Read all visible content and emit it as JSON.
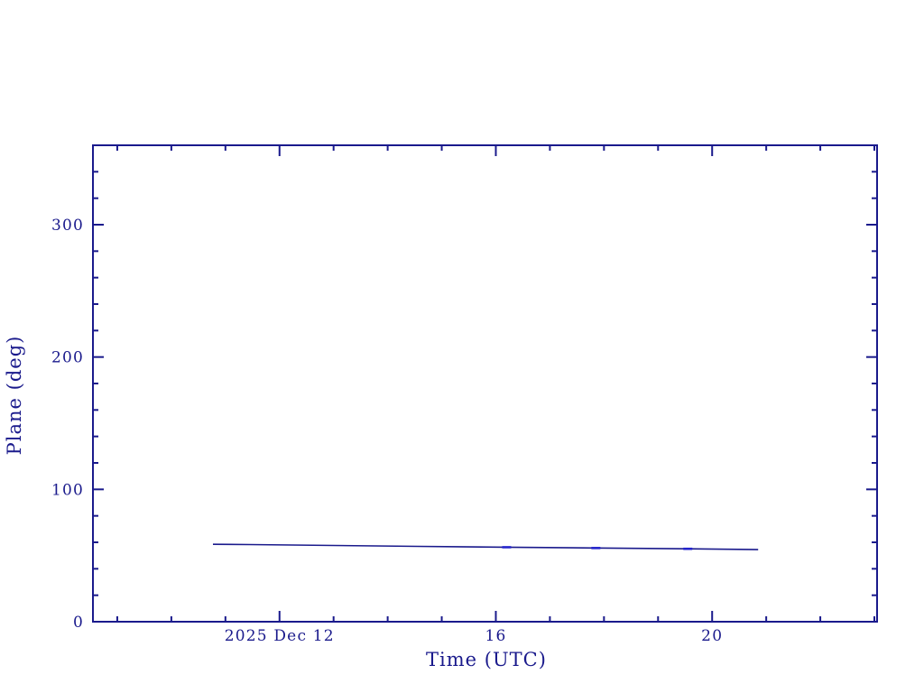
{
  "figure": {
    "background": "#ffffff"
  },
  "chart_data": {
    "type": "line",
    "title": "",
    "xlabel": "Time (UTC)",
    "ylabel": "Plane (deg)",
    "axis_color": "#1a1a8c",
    "grid": false,
    "legend": null,
    "x_axis": {
      "unit": "hours UTC on 2025 Dec 12",
      "range": [
        8.55,
        23.05
      ],
      "minor_tick_step": 1,
      "major_ticks": [
        {
          "value": 12,
          "label": "2025 Dec 12"
        },
        {
          "value": 16,
          "label": "16"
        },
        {
          "value": 20,
          "label": "20"
        }
      ]
    },
    "y_axis": {
      "unit": "deg",
      "range": [
        0,
        360
      ],
      "minor_tick_step": 20,
      "major_ticks": [
        {
          "value": 0,
          "label": "0"
        },
        {
          "value": 100,
          "label": "100"
        },
        {
          "value": 200,
          "label": "200"
        },
        {
          "value": 300,
          "label": "300"
        }
      ]
    },
    "series": [
      {
        "name": "plane-angle",
        "color": "#1a1a8c",
        "x": [
          10.77,
          11.45,
          13.0,
          14.55,
          16.17,
          17.83,
          19.53,
          20.85
        ],
        "y": [
          58.5,
          58.3,
          57.6,
          56.9,
          56.3,
          55.7,
          55.1,
          54.5
        ]
      }
    ],
    "point_markers": {
      "color": "#2424cc",
      "points": [
        {
          "x": 16.2,
          "y": 56.28
        },
        {
          "x": 17.85,
          "y": 55.68
        },
        {
          "x": 19.55,
          "y": 55.08
        }
      ]
    }
  }
}
